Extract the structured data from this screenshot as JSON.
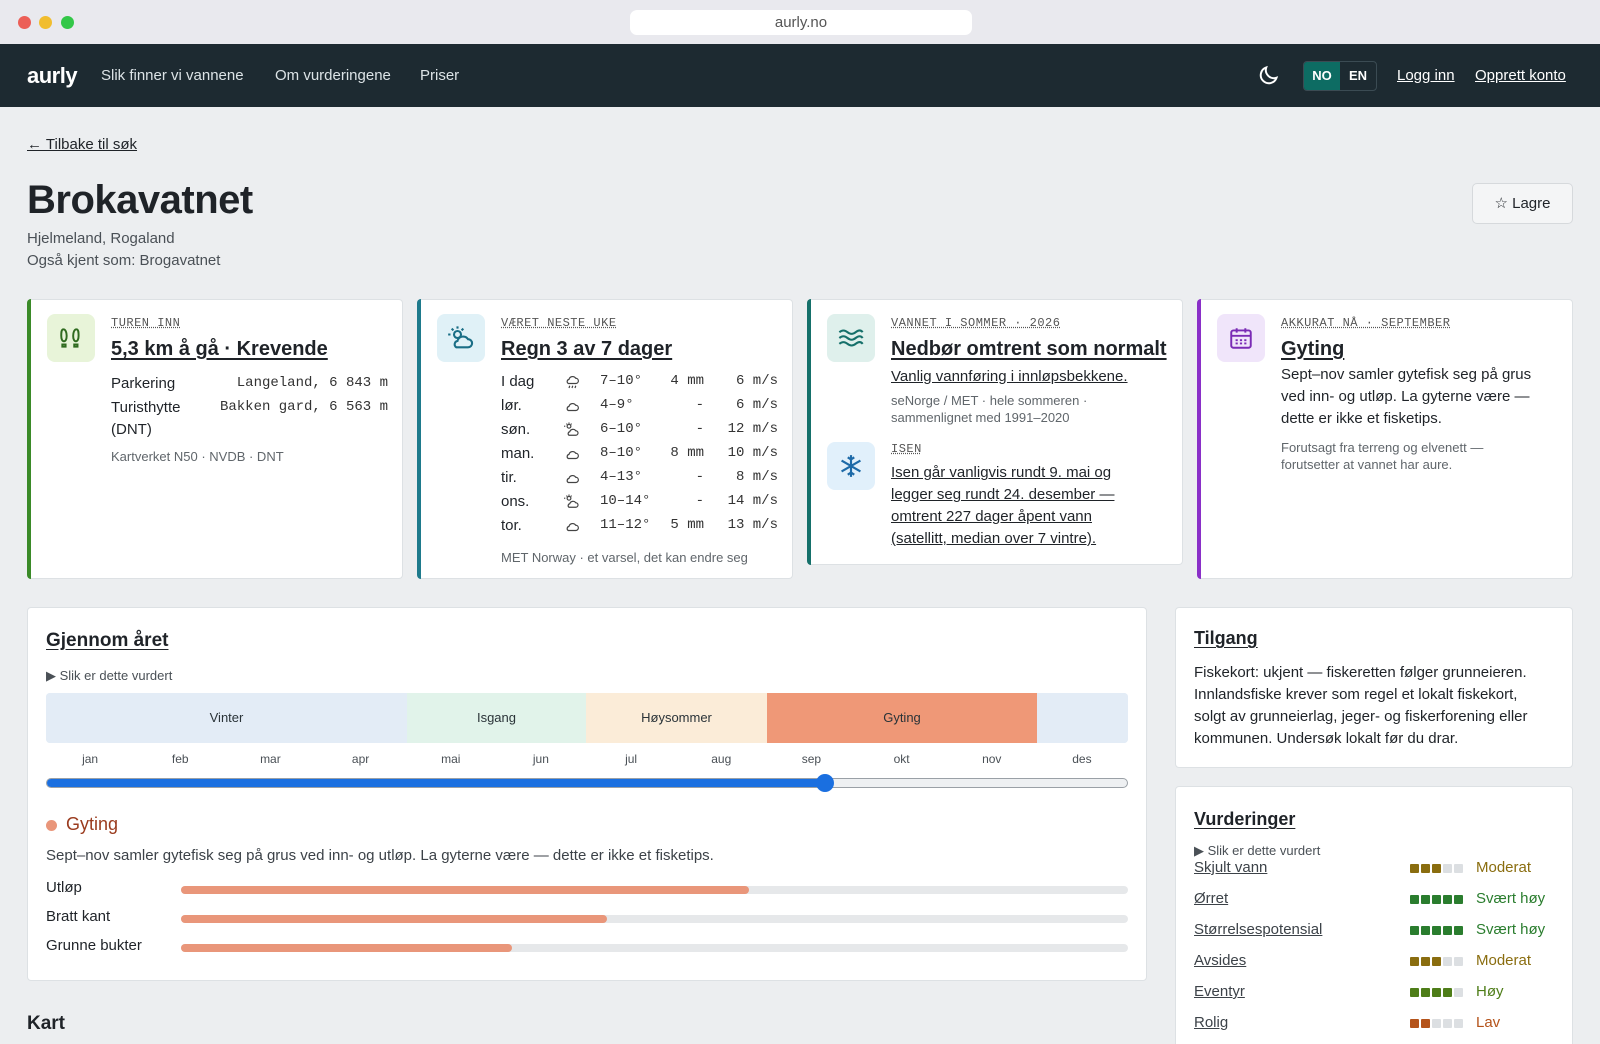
{
  "browser": {
    "url": "aurly.no"
  },
  "nav": {
    "logo": "aurly",
    "links": [
      "Slik finner vi vannene",
      "Om vurderingene",
      "Priser"
    ],
    "lang": [
      "NO",
      "EN"
    ],
    "login": "Logg inn",
    "signup": "Opprett konto"
  },
  "page": {
    "back": "← Tilbake til søk",
    "title": "Brokavatnet",
    "location": "Hjelmeland, Rogaland",
    "alias": "Også kjent som: Brogavatnet",
    "save": "☆  Lagre"
  },
  "cards": {
    "trip": {
      "eyebrow": "TUREN INN",
      "title": "5,3 km å gå · Krevende",
      "parking_label": "Parkering",
      "parking_value": "Langeland, 6 843 m",
      "hut_label": "Turisthytte",
      "hut_label2": "(DNT)",
      "hut_value": "Bakken gard, 6 563 m",
      "source": "Kartverket N50 · NVDB · DNT",
      "color": "#3a8a28"
    },
    "weather": {
      "eyebrow": "VÆRET NESTE UKE",
      "title": "Regn 3 av 7 dager",
      "days": [
        {
          "day": "I dag",
          "icon": "rain-icon",
          "temp": "7–10°",
          "rain": "4 mm",
          "wind": "6 m/s"
        },
        {
          "day": "lør.",
          "icon": "cloud-icon",
          "temp": "4–9°",
          "rain": "-",
          "wind": "6 m/s"
        },
        {
          "day": "søn.",
          "icon": "partly-sunny-icon",
          "temp": "6–10°",
          "rain": "-",
          "wind": "12 m/s"
        },
        {
          "day": "man.",
          "icon": "cloud-icon",
          "temp": "8–10°",
          "rain": "8 mm",
          "wind": "10 m/s"
        },
        {
          "day": "tir.",
          "icon": "cloud-icon",
          "temp": "4–13°",
          "rain": "-",
          "wind": "8 m/s"
        },
        {
          "day": "ons.",
          "icon": "partly-sunny-icon",
          "temp": "10–14°",
          "rain": "-",
          "wind": "14 m/s"
        },
        {
          "day": "tor.",
          "icon": "cloud-icon",
          "temp": "11–12°",
          "rain": "5 mm",
          "wind": "13 m/s"
        }
      ],
      "source": "MET Norway · et varsel, det kan endre seg",
      "color": "#1e7a8c"
    },
    "water": {
      "eyebrow": "VANNET I SOMMER · 2026",
      "title": "Nedbør omtrent som normalt",
      "text": "Vanlig vannføring i innløpsbekkene.",
      "source1": "seNorge / MET · hele sommeren ·",
      "source2": "sammenlignet med 1991–2020",
      "ice_eyebrow": "ISEN",
      "ice_lines": [
        "Isen går vanligvis rundt 9. mai og",
        "legger seg rundt 24. desember —",
        "omtrent 227 dager åpent vann",
        "(satellitt, median over 7 vintre)."
      ],
      "color": "#15706a"
    },
    "now": {
      "eyebrow": "AKKURAT NÅ · SEPTEMBER",
      "title": "Gyting",
      "lines": [
        "Sept–nov samler gytefisk seg på grus",
        "ved inn- og utløp. La gyterne være —",
        "dette er ikke et fisketips."
      ],
      "source1": "Forutsagt fra terreng og elvenett —",
      "source2": "forutsetter at vannet har aure.",
      "color": "#8a2fc8"
    }
  },
  "year": {
    "title": "Gjennom året",
    "disclosure": "Slik er dette vurdert",
    "seasons": [
      "Vinter",
      "Isgang",
      "Høysommer",
      "Gyting"
    ],
    "months": [
      "jan",
      "feb",
      "mar",
      "apr",
      "mai",
      "jun",
      "jul",
      "aug",
      "sep",
      "okt",
      "nov",
      "des"
    ],
    "slider_fraction": 0.72,
    "current_title": "Gyting",
    "current_text": "Sept–nov samler gytefisk seg på grus ved inn- og utløp. La gyterne være — dette er ikke et fisketips.",
    "bars": [
      {
        "label": "Utløp",
        "value": 0.6
      },
      {
        "label": "Bratt kant",
        "value": 0.45
      },
      {
        "label": "Grunne bukter",
        "value": 0.35
      }
    ]
  },
  "access": {
    "title": "Tilgang",
    "lines": [
      "Fiskekort: ukjent — fiskeretten følger grunneieren.",
      "Innlandsfiske krever som regel et lokalt fiskekort,",
      "solgt av grunneierlag, jeger- og fiskerforening eller",
      "kommunen. Undersøk lokalt før du drar."
    ]
  },
  "ratings": {
    "title": "Vurderinger",
    "disclosure": "Slik er dette vurdert",
    "items": [
      {
        "label": "Skjult vann",
        "score": 3,
        "value": "Moderat",
        "color": "#8a6d0f"
      },
      {
        "label": "Ørret",
        "score": 5,
        "value": "Svært høy",
        "color": "#2a7d2e"
      },
      {
        "label": "Størrelsespotensial",
        "score": 5,
        "value": "Svært høy",
        "color": "#2a7d2e"
      },
      {
        "label": "Avsides",
        "score": 3,
        "value": "Moderat",
        "color": "#8a6d0f"
      },
      {
        "label": "Eventyr",
        "score": 4,
        "value": "Høy",
        "color": "#4e7d18"
      },
      {
        "label": "Rolig",
        "score": 2,
        "value": "Lav",
        "color": "#b4531a"
      }
    ]
  },
  "map": {
    "title": "Kart"
  }
}
